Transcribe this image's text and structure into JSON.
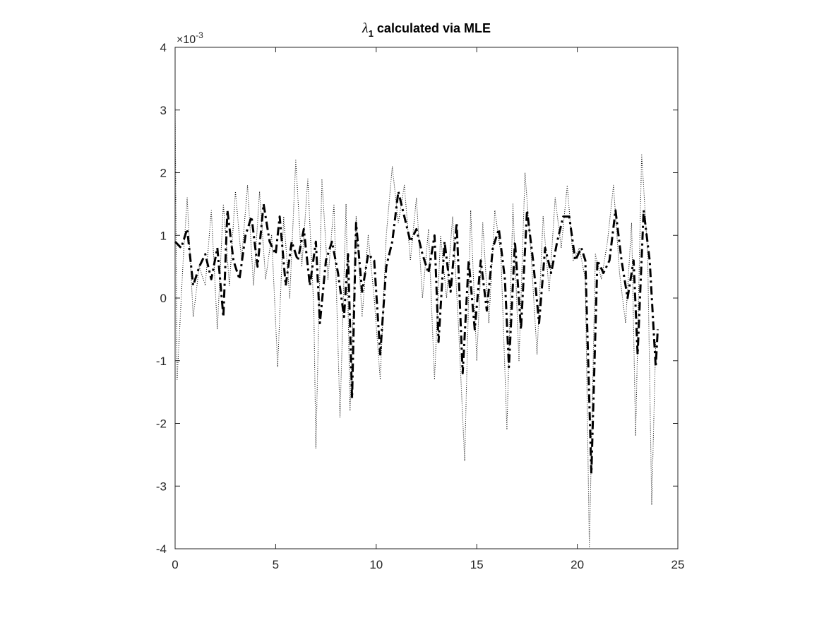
{
  "chart_data": {
    "type": "line",
    "title": {
      "symbol": "λ",
      "subscript": "1",
      "text": "calculated via MLE"
    },
    "y_multiplier": "×10",
    "y_multiplier_exponent": "-3",
    "xlim": [
      0,
      25
    ],
    "xticks": [
      0,
      5,
      10,
      15,
      20,
      25
    ],
    "ylim": [
      -4,
      4
    ],
    "yticks": [
      -4,
      -3,
      -2,
      -1,
      0,
      1,
      2,
      3,
      4
    ],
    "grid": false,
    "box": true,
    "series": [
      {
        "color": "#000000",
        "style": "dashdot",
        "x": [
          0,
          0.3,
          0.6,
          0.9,
          1.2,
          1.5,
          1.8,
          2.1,
          2.4,
          2.6,
          2.9,
          3.2,
          3.5,
          3.8,
          4.1,
          4.4,
          4.7,
          5.0,
          5.2,
          5.5,
          5.8,
          6.1,
          6.4,
          6.7,
          7.0,
          7.2,
          7.5,
          7.8,
          8.1,
          8.4,
          8.6,
          8.8,
          9.0,
          9.3,
          9.6,
          9.9,
          10.2,
          10.5,
          10.8,
          11.1,
          11.4,
          11.7,
          12.0,
          12.3,
          12.6,
          12.9,
          13.1,
          13.4,
          13.7,
          14.0,
          14.3,
          14.6,
          14.9,
          15.2,
          15.5,
          15.8,
          16.1,
          16.4,
          16.6,
          16.9,
          17.2,
          17.5,
          17.8,
          18.1,
          18.4,
          18.7,
          19.0,
          19.3,
          19.6,
          19.9,
          20.2,
          20.4,
          20.7,
          21.0,
          21.3,
          21.6,
          21.9,
          22.2,
          22.5,
          22.8,
          23.0,
          23.3,
          23.6,
          23.9,
          24.0
        ],
        "values": [
          0.9,
          0.8,
          1.1,
          0.2,
          0.5,
          0.7,
          0.3,
          0.8,
          -0.3,
          1.4,
          0.6,
          0.3,
          1.0,
          1.3,
          0.5,
          1.5,
          0.9,
          0.7,
          1.3,
          0.2,
          0.9,
          0.6,
          1.1,
          0.2,
          0.9,
          -0.4,
          0.6,
          0.9,
          0.4,
          -0.3,
          0.7,
          -1.6,
          1.2,
          0.1,
          0.7,
          0.6,
          -0.9,
          0.5,
          0.9,
          1.7,
          1.3,
          0.9,
          1.1,
          0.7,
          0.4,
          1.0,
          -0.7,
          0.9,
          0.1,
          1.2,
          -1.2,
          0.6,
          -0.5,
          0.6,
          -0.2,
          0.8,
          1.1,
          0.3,
          -1.1,
          0.9,
          -0.5,
          1.4,
          0.6,
          -0.4,
          0.8,
          0.4,
          0.9,
          1.3,
          1.3,
          0.6,
          0.8,
          0.6,
          -2.8,
          0.6,
          0.4,
          0.6,
          1.4,
          0.6,
          0.0,
          0.6,
          -0.9,
          1.4,
          0.6,
          -1.1,
          -0.5
        ]
      },
      {
        "color": "#000000",
        "style": "dotted",
        "x": [
          0,
          0.1,
          0.4,
          0.6,
          0.9,
          1.2,
          1.5,
          1.8,
          2.1,
          2.4,
          2.7,
          3.0,
          3.3,
          3.6,
          3.9,
          4.2,
          4.5,
          4.8,
          5.1,
          5.4,
          5.7,
          6.0,
          6.3,
          6.6,
          6.9,
          7.0,
          7.3,
          7.6,
          7.9,
          8.2,
          8.5,
          8.7,
          9.0,
          9.3,
          9.6,
          9.9,
          10.2,
          10.5,
          10.8,
          11.1,
          11.4,
          11.7,
          12.0,
          12.3,
          12.6,
          12.9,
          13.2,
          13.5,
          13.8,
          14.1,
          14.4,
          14.7,
          15.0,
          15.3,
          15.6,
          15.9,
          16.2,
          16.5,
          16.8,
          17.1,
          17.4,
          17.7,
          18.0,
          18.3,
          18.6,
          18.9,
          19.2,
          19.5,
          19.8,
          20.1,
          20.4,
          20.6,
          20.9,
          21.2,
          21.5,
          21.8,
          22.1,
          22.4,
          22.7,
          22.9,
          23.2,
          23.5,
          23.7,
          23.9
        ],
        "values": [
          3.1,
          -1.3,
          0.6,
          1.6,
          -0.3,
          0.5,
          0.2,
          1.4,
          -0.5,
          1.5,
          0.2,
          1.7,
          0.6,
          1.8,
          0.2,
          1.7,
          0.3,
          1.0,
          -1.1,
          1.3,
          0.0,
          2.2,
          0.5,
          1.9,
          -0.2,
          -2.4,
          1.9,
          0.3,
          1.5,
          -1.9,
          1.5,
          -1.8,
          1.3,
          -0.3,
          1.0,
          0.0,
          -1.3,
          1.0,
          2.1,
          1.2,
          1.8,
          0.6,
          1.6,
          0.0,
          1.1,
          -1.3,
          1.0,
          0.0,
          1.3,
          -0.5,
          -2.6,
          1.4,
          -1.0,
          1.2,
          -0.4,
          1.4,
          0.7,
          -2.1,
          1.5,
          -1.0,
          2.0,
          0.7,
          -0.9,
          1.3,
          0.1,
          1.6,
          0.8,
          1.8,
          0.6,
          0.8,
          0.3,
          -4.0,
          0.7,
          0.3,
          0.9,
          1.8,
          0.4,
          -0.4,
          1.2,
          -2.2,
          2.3,
          0.7,
          -3.3,
          -0.7
        ]
      }
    ]
  }
}
